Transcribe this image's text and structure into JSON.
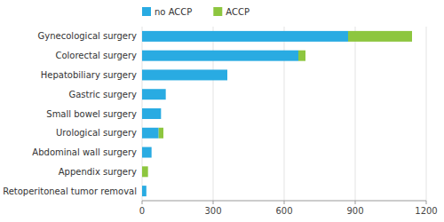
{
  "chart_data": {
    "type": "bar",
    "orientation": "horizontal",
    "stacked": true,
    "categories": [
      "Retoperitoneal tumor removal",
      "Appendix surgery",
      "Abdominal wall surgery",
      "Urological surgery",
      "Small bowel surgery",
      "Gastric surgery",
      "Hepatobiliary surgery",
      "Colorectal surgery",
      "Gynecological surgery"
    ],
    "series": [
      {
        "name": "no ACCP",
        "color": "#29abe2",
        "values": [
          18,
          0,
          40,
          70,
          80,
          100,
          360,
          660,
          870
        ]
      },
      {
        "name": "ACCP",
        "color": "#8dc63f",
        "values": [
          0,
          25,
          0,
          20,
          0,
          0,
          0,
          30,
          270
        ]
      }
    ],
    "xlim": [
      0,
      1200
    ],
    "xticks": [
      0,
      300,
      600,
      900,
      1200
    ],
    "grid": true,
    "legend": "top"
  }
}
